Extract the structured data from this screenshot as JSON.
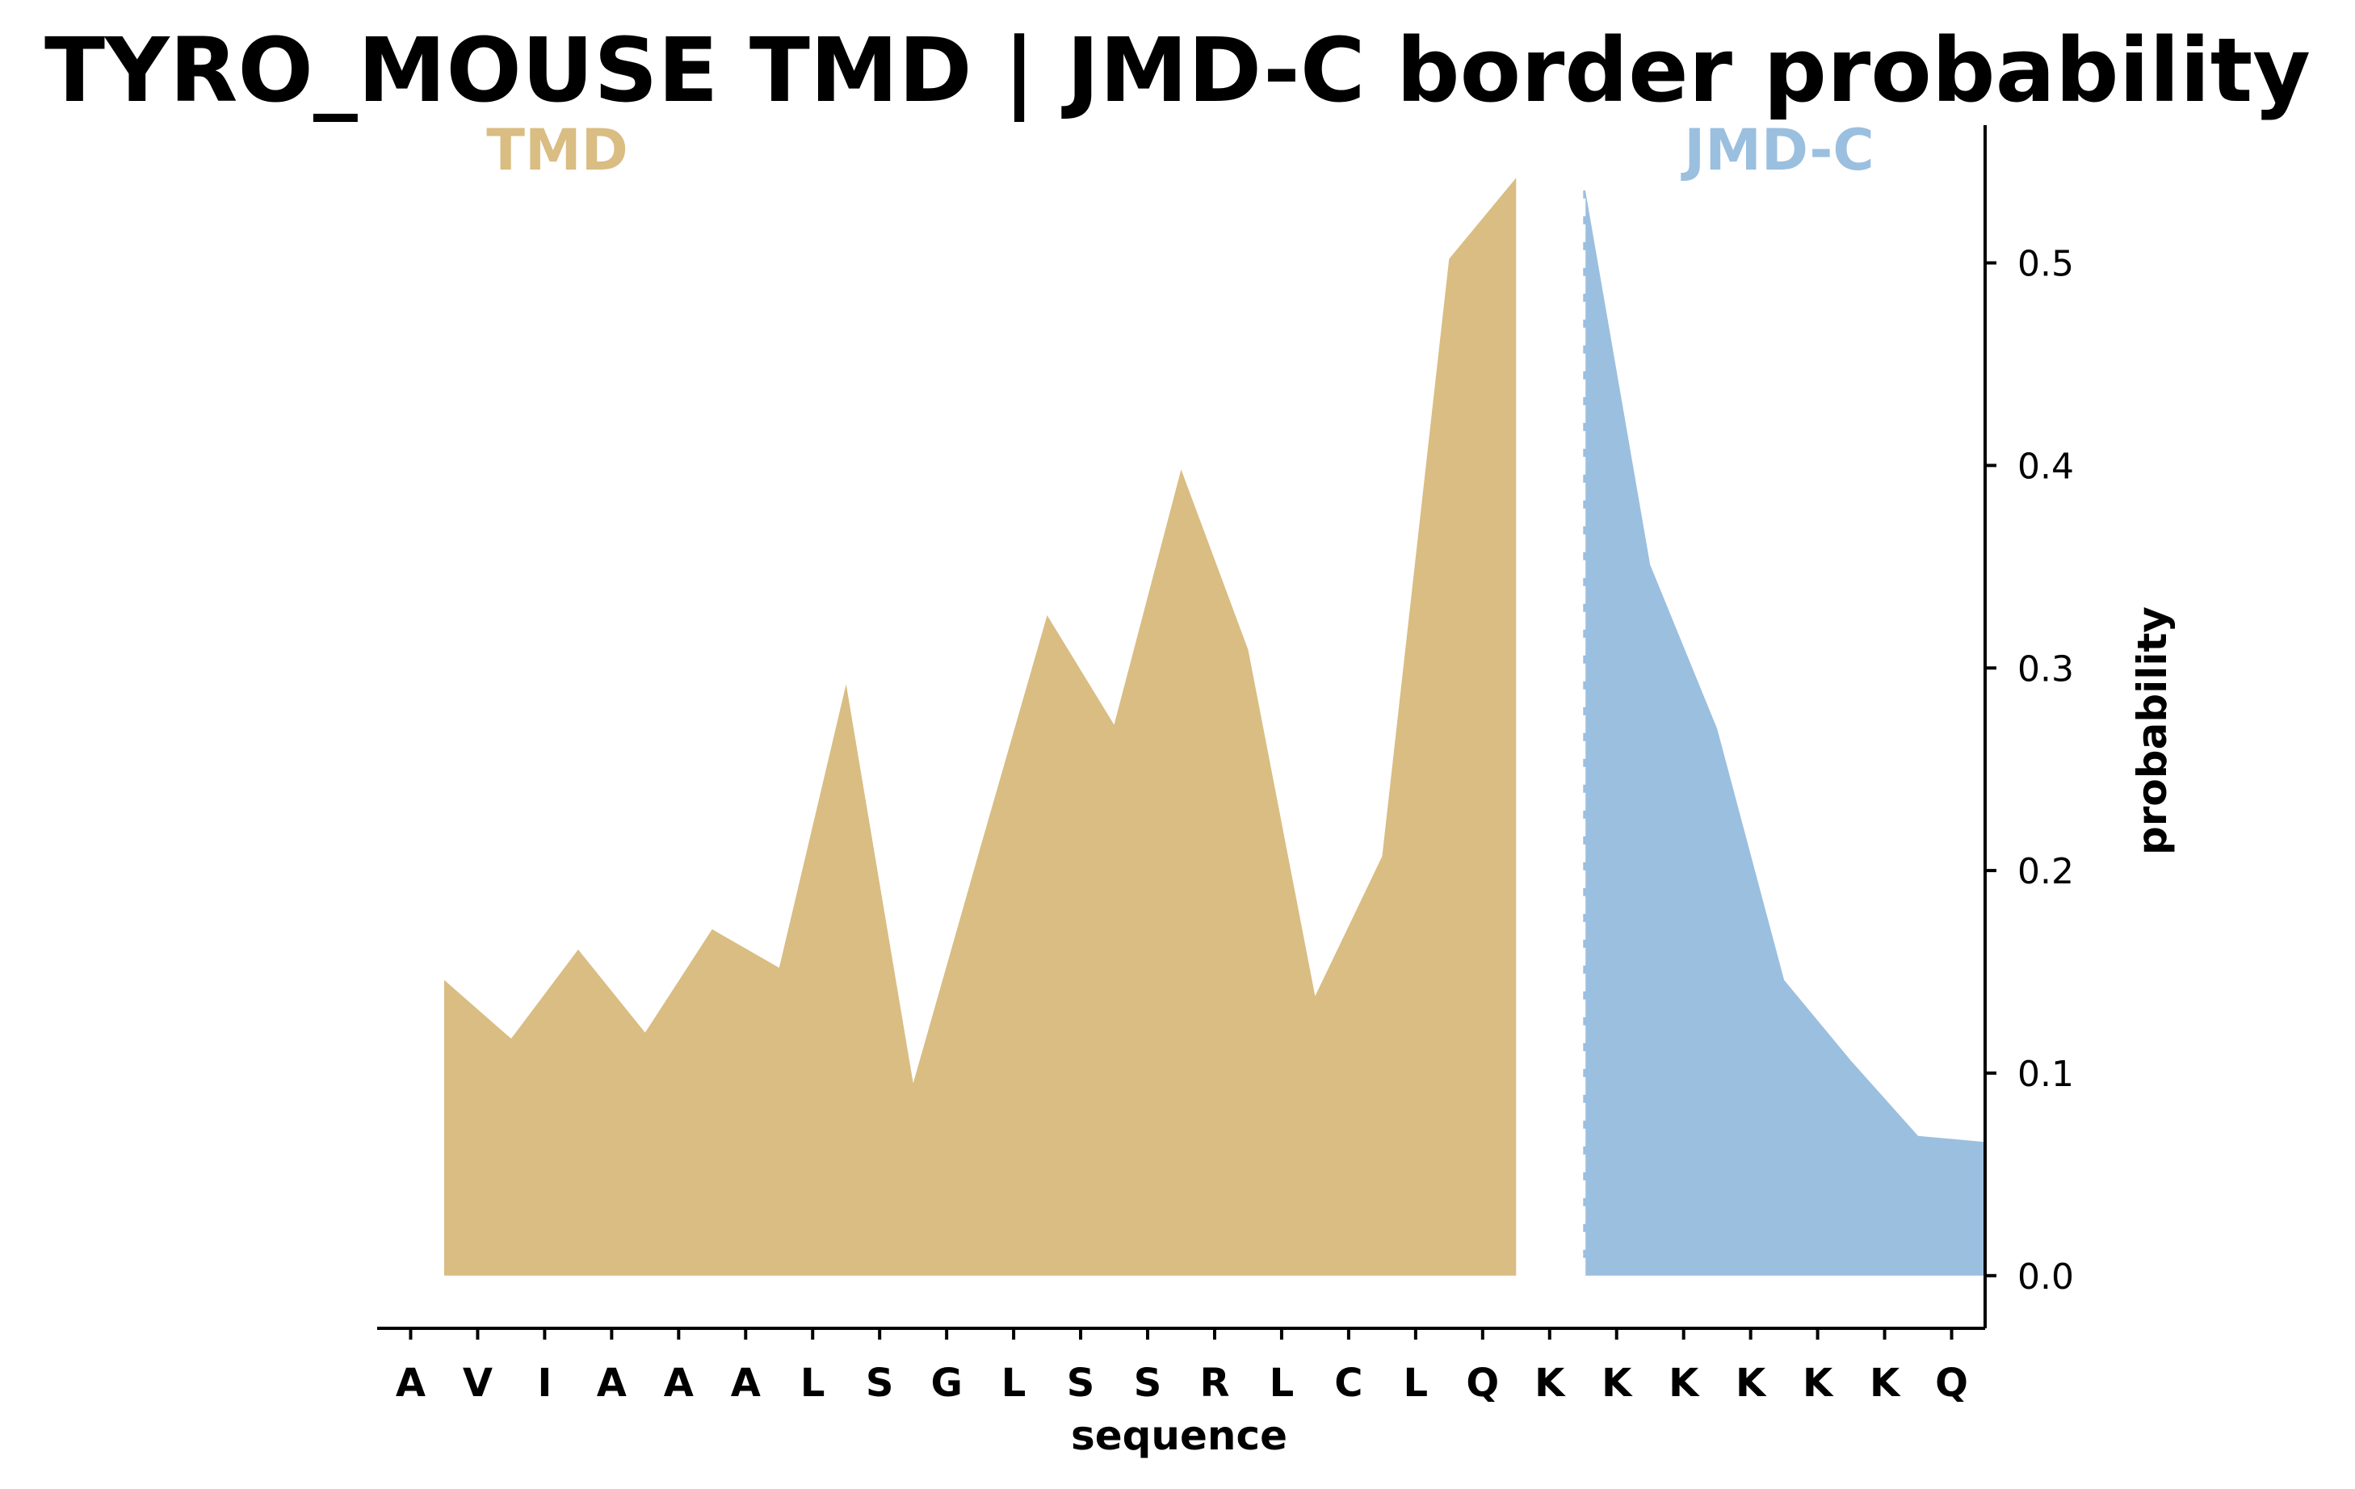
{
  "chart_data": {
    "type": "area",
    "title": "TYRO_MOUSE TMD | JMD-C border probability",
    "xlabel": "sequence",
    "ylabel": "probability",
    "categories": [
      "A",
      "V",
      "I",
      "A",
      "A",
      "A",
      "L",
      "S",
      "G",
      "L",
      "S",
      "S",
      "R",
      "L",
      "C",
      "L",
      "Q",
      "K",
      "K",
      "K",
      "K",
      "K",
      "K",
      "Q"
    ],
    "ylim": [
      -0.026,
      0.568
    ],
    "yticks": [
      "0.0",
      "0.1",
      "0.2",
      "0.3",
      "0.4",
      "0.5"
    ],
    "y_axis_side": "right",
    "grid": false,
    "border_label": {
      "left": "TMD",
      "right": "JMD-C"
    },
    "series": [
      {
        "name": "TMD",
        "color": "#d9bd82",
        "x": [
          0.5,
          1.5,
          2.5,
          3.5,
          4.5,
          5.5,
          6.5,
          7.5,
          8.5,
          9.5,
          10.5,
          11.5,
          12.5,
          13.5,
          14.5,
          15.5,
          16.5
        ],
        "values": [
          0.146,
          0.117,
          0.161,
          0.12,
          0.171,
          0.152,
          0.292,
          0.095,
          0.211,
          0.326,
          0.272,
          0.398,
          0.309,
          0.138,
          0.207,
          0.502,
          0.542
        ]
      },
      {
        "name": "JMD-C",
        "color": "#9bbfdf",
        "x": [
          17.5,
          18.5,
          19.5,
          20.5,
          21.5,
          22.5,
          23.5
        ],
        "values": [
          0.542,
          0.351,
          0.27,
          0.146,
          0.106,
          0.069,
          0.066
        ]
      }
    ],
    "border_line": {
      "x": 17.5,
      "style": "dashed",
      "color": "#ffffff"
    }
  }
}
